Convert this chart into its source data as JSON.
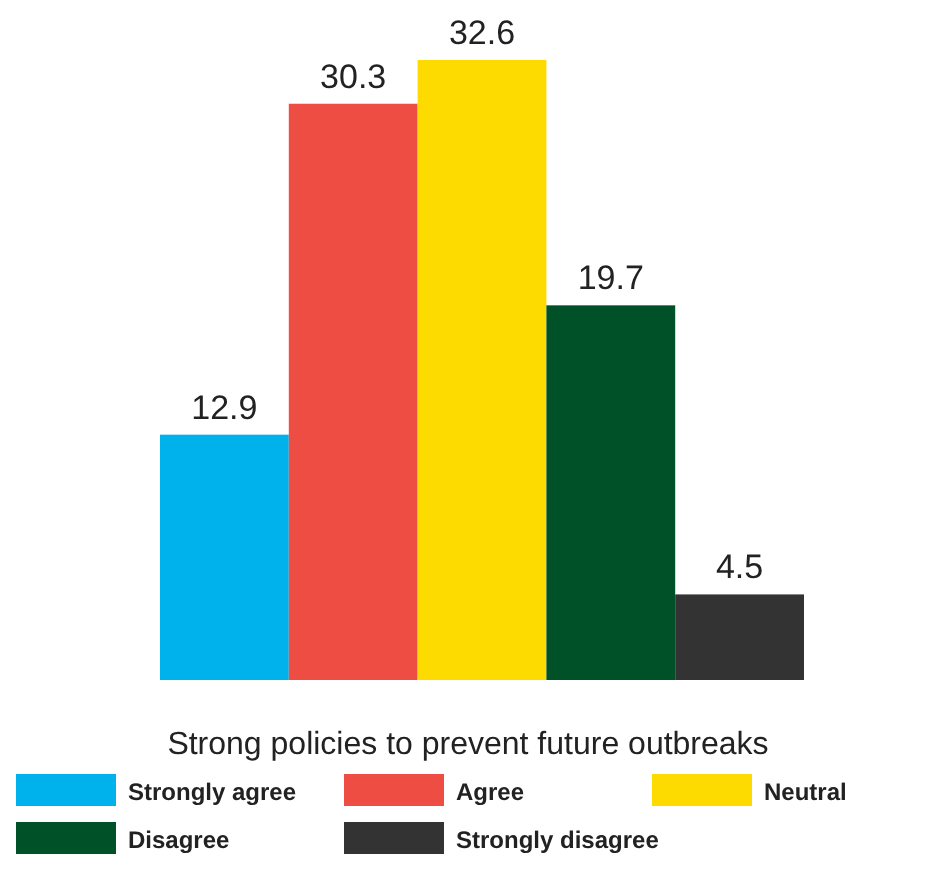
{
  "chart_data": {
    "type": "bar",
    "xlabel": "Strong policies to prevent future outbreaks",
    "categories": [
      null
    ],
    "series": [
      {
        "name": "Strongly agree",
        "color": "#00b2ec",
        "values": [
          12.9
        ]
      },
      {
        "name": "Agree",
        "color": "#ee4d43",
        "values": [
          30.3
        ]
      },
      {
        "name": "Neutral",
        "color": "#fedb00",
        "values": [
          32.6
        ]
      },
      {
        "name": "Disagree",
        "color": "#005028",
        "values": [
          19.7
        ]
      },
      {
        "name": "Strongly disagree",
        "color": "#333333",
        "values": [
          4.5
        ]
      }
    ],
    "data_labels": true,
    "legend": "bottom"
  }
}
